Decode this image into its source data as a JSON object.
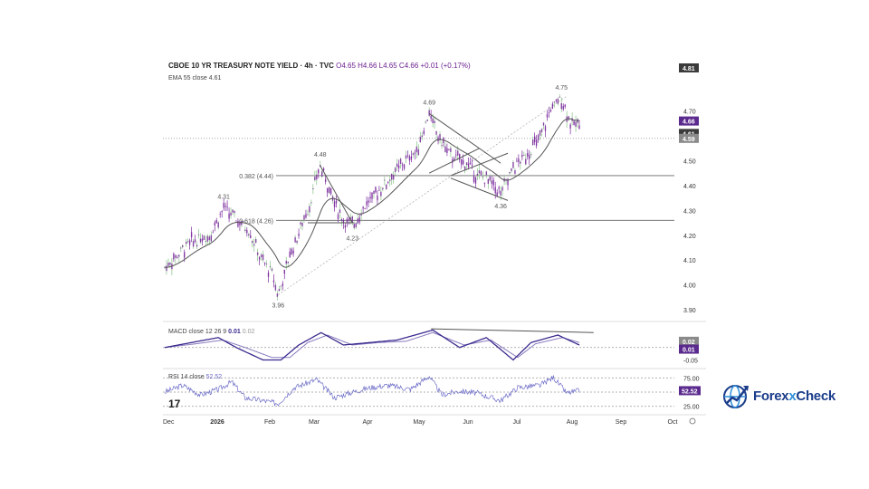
{
  "header": {
    "symbol": "CBOE 10 YR TREASURY NOTE YIELD · 4h · TVC",
    "ohlc": "O4.65 H4.66 L4.65 C4.66 +0.01 (+0.17%)"
  },
  "ema_label": "EMA 55 close  4.61",
  "brand": {
    "pre": "Forex",
    "x": "x",
    "post": "Check",
    "icon": "globe-chart-logo-icon"
  },
  "tv_logo": "17",
  "colors": {
    "candle": "#7b2a9e",
    "ema": "#555555",
    "macd": "#3b2a8e",
    "signal": "#8a7bbf",
    "rsi": "#6b6bc8",
    "brand": "#1a3c8a"
  },
  "chart_data": [
    {
      "type": "candlestick",
      "title": "CBOE 10 YR TREASURY NOTE YIELD · 4h · TVC",
      "y_ticks": [
        "4.70",
        "4.60",
        "4.50",
        "4.40",
        "4.30",
        "4.20",
        "4.10",
        "4.00",
        "3.90"
      ],
      "ylim": [
        3.86,
        4.83
      ],
      "x_ticks": [
        "Dec",
        "2026",
        "Feb",
        "Mar",
        "Apr",
        "May",
        "Jun",
        "Jul",
        "Aug",
        "Sep",
        "Oct"
      ],
      "price_labels": [
        {
          "text": "4.81",
          "value": 4.81,
          "style": "dark"
        },
        {
          "text": "4.66",
          "value": 4.66,
          "style": "purple"
        },
        {
          "text": "4.61",
          "value": 4.61,
          "style": "dark"
        },
        {
          "text": "4.59",
          "value": 4.59,
          "style": "gray"
        }
      ],
      "annotations": [
        {
          "text": "4.31",
          "x": "Jan",
          "value": 4.31
        },
        {
          "text": "4.48",
          "x": "Mar",
          "value": 4.48
        },
        {
          "text": "3.96",
          "x": "Mar",
          "value": 3.96
        },
        {
          "text": "4.23",
          "x": "Apr",
          "value": 4.23
        },
        {
          "text": "4.69",
          "x": "May",
          "value": 4.69
        },
        {
          "text": "4.36",
          "x": "Jun",
          "value": 4.36
        },
        {
          "text": "4.75",
          "x": "Jul",
          "value": 4.75
        }
      ],
      "fib_levels": [
        {
          "text": "0.382 (4.44)",
          "value": 4.44
        },
        {
          "text": "0.618 (4.26)",
          "value": 4.26
        }
      ],
      "series": [
        {
          "name": "EMA 55 close",
          "value": 4.61
        },
        {
          "name": "Close",
          "keypoints": [
            [
              0,
              4.07
            ],
            [
              28,
              4.17
            ],
            [
              50,
              4.2
            ],
            [
              66,
              4.31
            ],
            [
              78,
              4.27
            ],
            [
              94,
              4.22
            ],
            [
              108,
              4.1
            ],
            [
              120,
              4.05
            ],
            [
              127,
              3.96
            ],
            [
              140,
              4.12
            ],
            [
              160,
              4.3
            ],
            [
              174,
              4.48
            ],
            [
              186,
              4.37
            ],
            [
              198,
              4.27
            ],
            [
              210,
              4.24
            ],
            [
              226,
              4.33
            ],
            [
              245,
              4.4
            ],
            [
              264,
              4.48
            ],
            [
              282,
              4.54
            ],
            [
              296,
              4.69
            ],
            [
              306,
              4.6
            ],
            [
              320,
              4.52
            ],
            [
              338,
              4.49
            ],
            [
              350,
              4.44
            ],
            [
              364,
              4.42
            ],
            [
              376,
              4.37
            ],
            [
              390,
              4.47
            ],
            [
              404,
              4.52
            ],
            [
              420,
              4.59
            ],
            [
              432,
              4.71
            ],
            [
              444,
              4.75
            ],
            [
              456,
              4.64
            ],
            [
              464,
              4.66
            ]
          ]
        }
      ]
    },
    {
      "type": "line",
      "title": "MACD close 12 26 9",
      "legend_values": [
        "0.01",
        "0.02"
      ],
      "y_ticks": [
        "-0.05"
      ],
      "price_labels": [
        {
          "text": "0.02",
          "style": "gray"
        },
        {
          "text": "0.01",
          "style": "purple"
        }
      ],
      "series": [
        {
          "name": "MACD",
          "keypoints": [
            [
              0,
              0.0
            ],
            [
              30,
              0.02
            ],
            [
              60,
              0.04
            ],
            [
              80,
              0.0
            ],
            [
              110,
              -0.05
            ],
            [
              130,
              -0.05
            ],
            [
              150,
              0.01
            ],
            [
              175,
              0.06
            ],
            [
              200,
              0.01
            ],
            [
              230,
              0.02
            ],
            [
              260,
              0.03
            ],
            [
              290,
              0.06
            ],
            [
              300,
              0.07
            ],
            [
              330,
              0.0
            ],
            [
              360,
              0.04
            ],
            [
              390,
              -0.05
            ],
            [
              410,
              0.02
            ],
            [
              440,
              0.05
            ],
            [
              464,
              0.01
            ]
          ]
        },
        {
          "name": "Signal",
          "keypoints": [
            [
              0,
              0.0
            ],
            [
              35,
              0.015
            ],
            [
              65,
              0.03
            ],
            [
              90,
              0.0
            ],
            [
              120,
              -0.04
            ],
            [
              140,
              -0.04
            ],
            [
              160,
              0.02
            ],
            [
              182,
              0.05
            ],
            [
              210,
              0.01
            ],
            [
              240,
              0.02
            ],
            [
              270,
              0.025
            ],
            [
              300,
              0.06
            ],
            [
              335,
              0.01
            ],
            [
              365,
              0.03
            ],
            [
              395,
              -0.04
            ],
            [
              415,
              0.015
            ],
            [
              445,
              0.04
            ],
            [
              464,
              0.02
            ]
          ]
        }
      ]
    },
    {
      "type": "line",
      "title": "RSI 14 close",
      "legend_values": [
        "52.52"
      ],
      "y_ticks": [
        "75.00",
        "25.00"
      ],
      "price_labels": [
        {
          "text": "52.52",
          "style": "purple"
        }
      ],
      "series": [
        {
          "name": "RSI",
          "keypoints": [
            [
              0,
              50
            ],
            [
              20,
              62
            ],
            [
              40,
              45
            ],
            [
              60,
              55
            ],
            [
              75,
              68
            ],
            [
              90,
              40
            ],
            [
              110,
              35
            ],
            [
              127,
              30
            ],
            [
              145,
              58
            ],
            [
              170,
              72
            ],
            [
              190,
              40
            ],
            [
              210,
              50
            ],
            [
              230,
              58
            ],
            [
              250,
              62
            ],
            [
              275,
              55
            ],
            [
              296,
              78
            ],
            [
              310,
              45
            ],
            [
              330,
              52
            ],
            [
              350,
              48
            ],
            [
              376,
              35
            ],
            [
              395,
              58
            ],
            [
              420,
              62
            ],
            [
              435,
              76
            ],
            [
              450,
              48
            ],
            [
              464,
              52.52
            ]
          ]
        }
      ]
    }
  ]
}
